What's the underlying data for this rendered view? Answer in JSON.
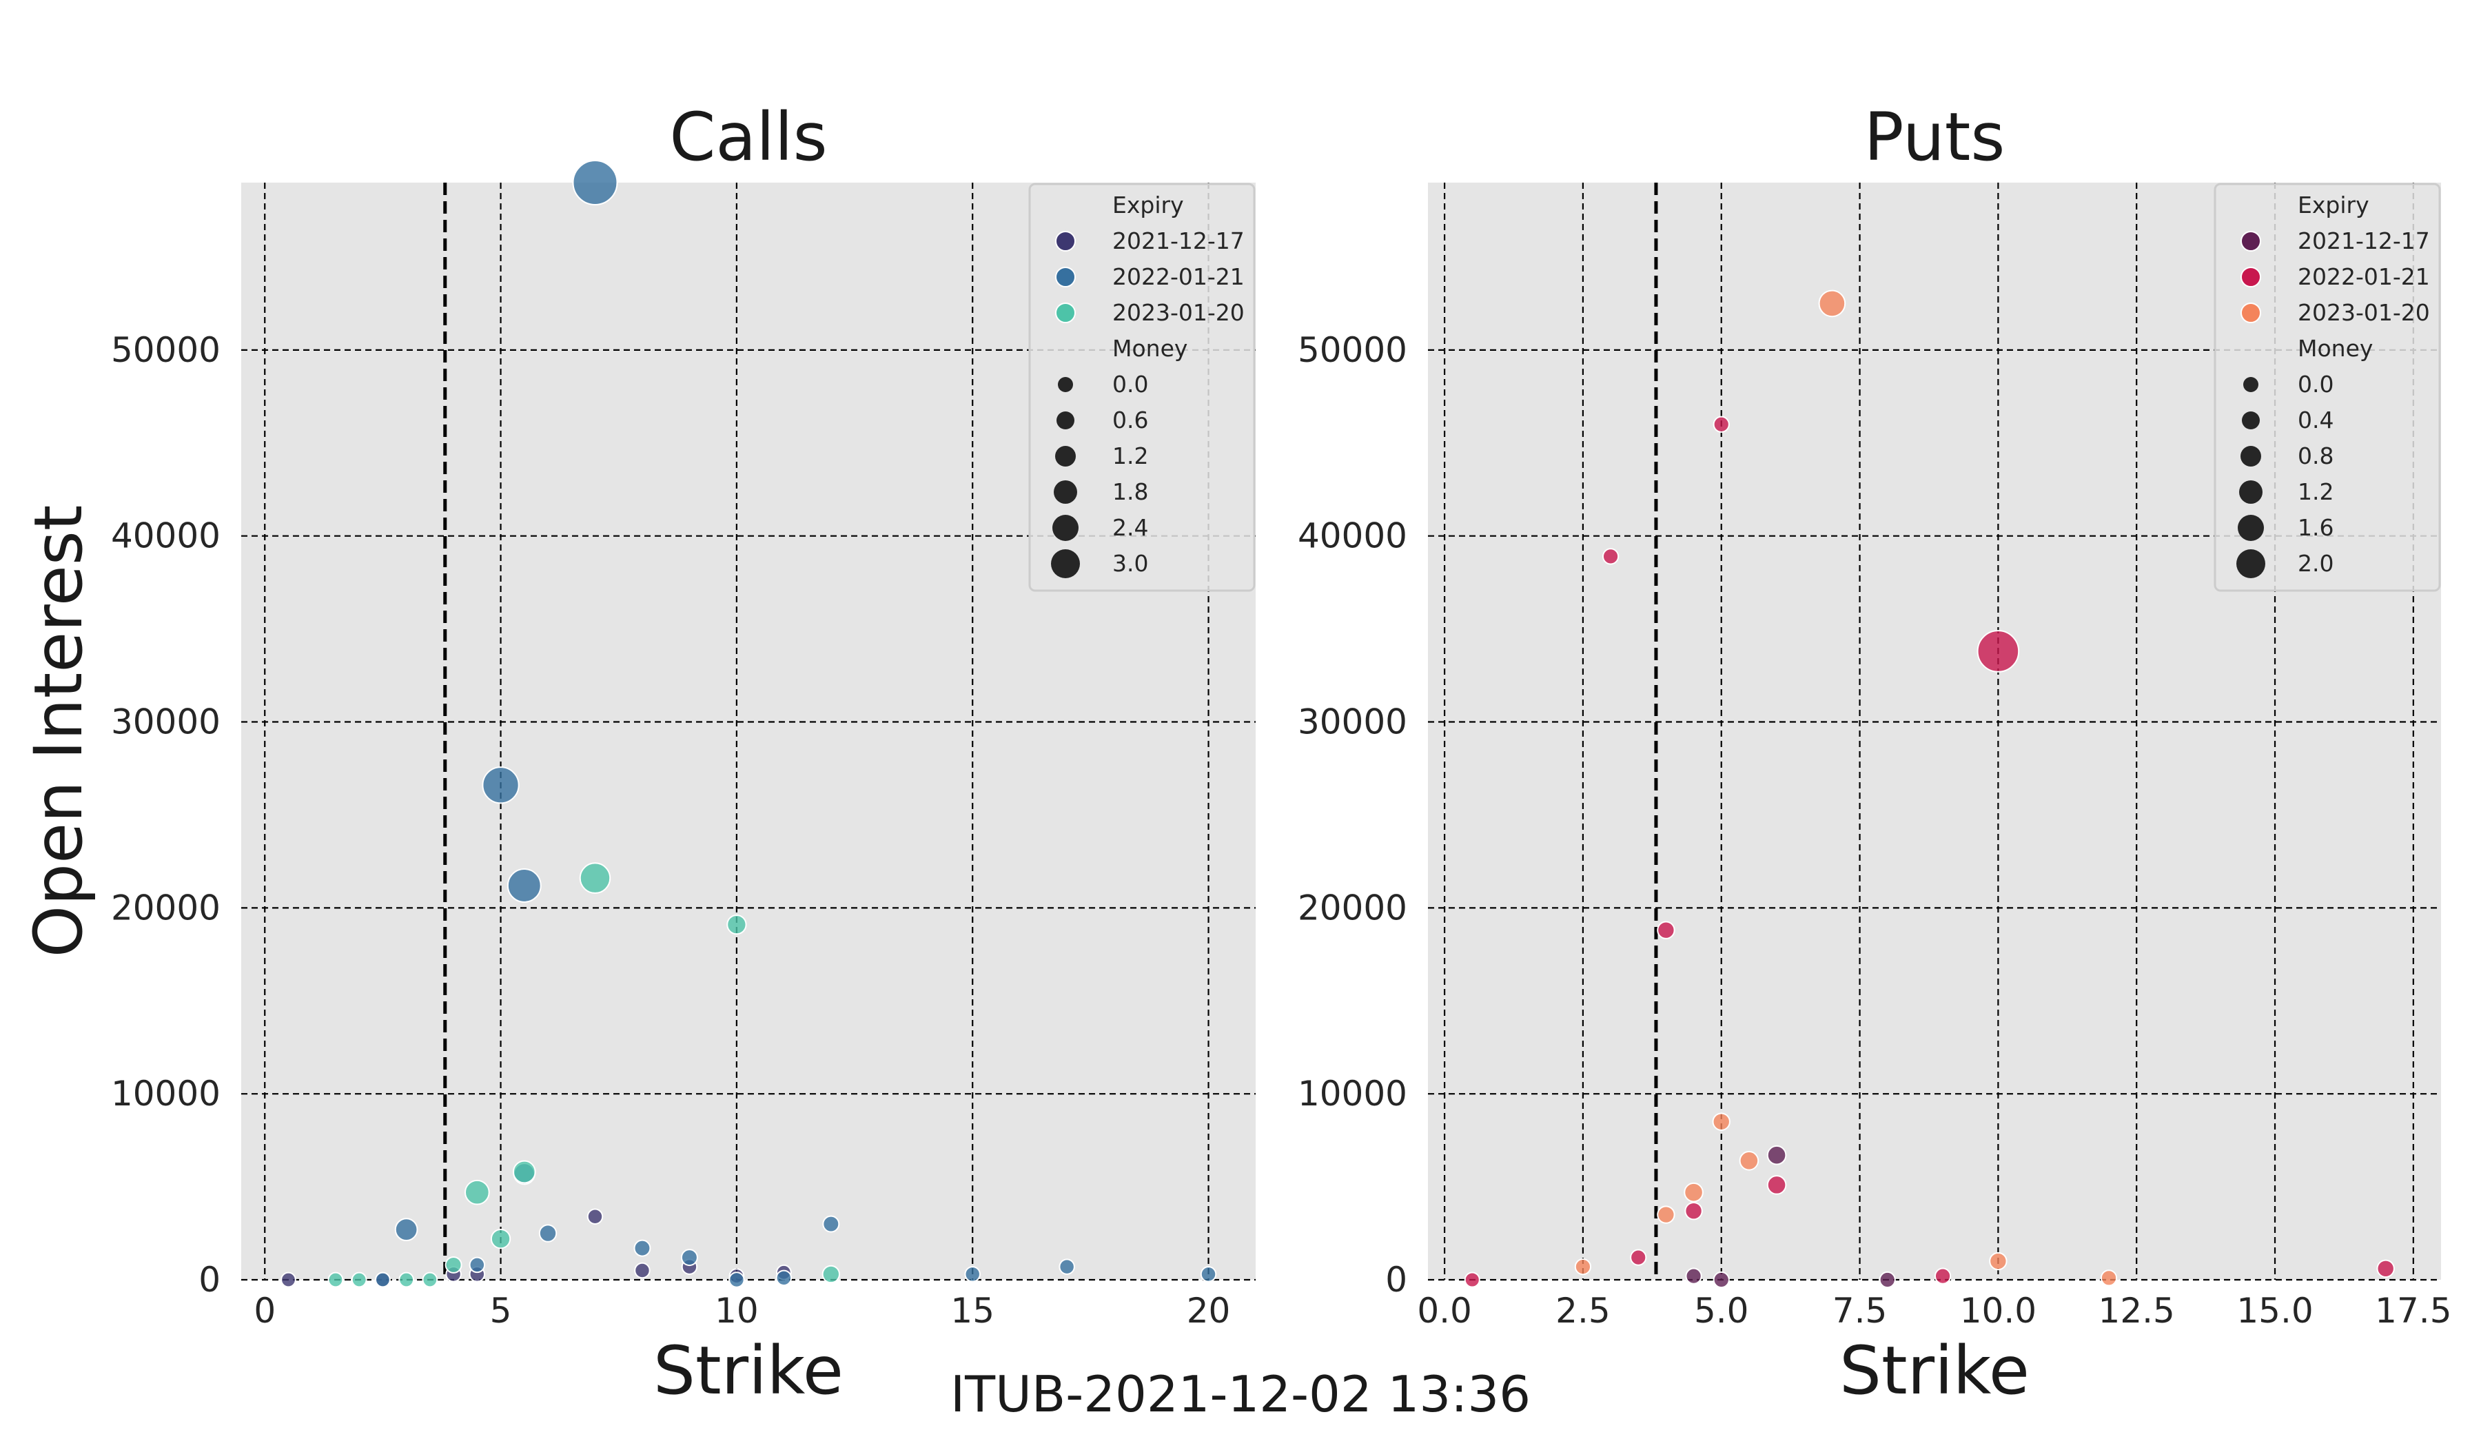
{
  "caption": "ITUB-2021-12-02 13:36",
  "chart_data": [
    {
      "type": "scatter",
      "title": "Calls",
      "xlabel": "Strike",
      "ylabel": "Open Interest",
      "xlim": [
        -0.5,
        21
      ],
      "ylim": [
        0,
        59000
      ],
      "xticks": [
        0,
        5,
        10,
        15,
        20
      ],
      "xtick_labels": [
        "0",
        "5",
        "10",
        "15",
        "20"
      ],
      "yticks": [
        0,
        10000,
        20000,
        30000,
        40000,
        50000
      ],
      "ytick_labels": [
        "0",
        "10000",
        "20000",
        "30000",
        "40000",
        "50000"
      ],
      "grid": true,
      "spot_line_x": 3.82,
      "legend": {
        "position": "top-right",
        "hue_title": "Expiry",
        "size_title": "Money",
        "size_entries": [
          "0.0",
          "0.6",
          "1.2",
          "1.8",
          "2.4",
          "3.0"
        ],
        "size_values": [
          0.0,
          0.6,
          1.2,
          1.8,
          2.4,
          3.0
        ]
      },
      "size_range": [
        0,
        3.0
      ],
      "series": [
        {
          "name": "2021-12-17",
          "color": "#3d3770",
          "points": [
            {
              "x": 0.5,
              "y": 0,
              "m": 0.05
            },
            {
              "x": 2.5,
              "y": 0,
              "m": 0.05
            },
            {
              "x": 4,
              "y": 300,
              "m": 0.1
            },
            {
              "x": 4.5,
              "y": 300,
              "m": 0.1
            },
            {
              "x": 7,
              "y": 3400,
              "m": 0.1
            },
            {
              "x": 8,
              "y": 500,
              "m": 0.1
            },
            {
              "x": 9,
              "y": 700,
              "m": 0.1
            },
            {
              "x": 10,
              "y": 200,
              "m": 0.05
            },
            {
              "x": 11,
              "y": 400,
              "m": 0.05
            }
          ]
        },
        {
          "name": "2022-01-21",
          "color": "#36709f",
          "points": [
            {
              "x": 2.5,
              "y": 0,
              "m": 0.05
            },
            {
              "x": 3,
              "y": 2700,
              "m": 0.8
            },
            {
              "x": 4.5,
              "y": 800,
              "m": 0.1
            },
            {
              "x": 5,
              "y": 26600,
              "m": 2.2
            },
            {
              "x": 5.5,
              "y": 21200,
              "m": 1.9
            },
            {
              "x": 5.5,
              "y": 5700,
              "m": 0.7
            },
            {
              "x": 6,
              "y": 2500,
              "m": 0.3
            },
            {
              "x": 7,
              "y": 59000,
              "m": 3.0
            },
            {
              "x": 8,
              "y": 1700,
              "m": 0.2
            },
            {
              "x": 9,
              "y": 1200,
              "m": 0.2
            },
            {
              "x": 10,
              "y": 0,
              "m": 0.1
            },
            {
              "x": 11,
              "y": 100,
              "m": 0.1
            },
            {
              "x": 12,
              "y": 3000,
              "m": 0.2
            },
            {
              "x": 15,
              "y": 300,
              "m": 0.1
            },
            {
              "x": 17,
              "y": 700,
              "m": 0.1
            },
            {
              "x": 20,
              "y": 300,
              "m": 0.1
            }
          ]
        },
        {
          "name": "2023-01-20",
          "color": "#4dc3a8",
          "points": [
            {
              "x": 1.5,
              "y": 0,
              "m": 0.05
            },
            {
              "x": 2,
              "y": 0,
              "m": 0.05
            },
            {
              "x": 3,
              "y": 0,
              "m": 0.05
            },
            {
              "x": 3.5,
              "y": 0,
              "m": 0.05
            },
            {
              "x": 4,
              "y": 800,
              "m": 0.2
            },
            {
              "x": 4.5,
              "y": 4700,
              "m": 1.0
            },
            {
              "x": 5,
              "y": 2200,
              "m": 0.5
            },
            {
              "x": 5.5,
              "y": 5800,
              "m": 0.8
            },
            {
              "x": 7,
              "y": 21600,
              "m": 1.6
            },
            {
              "x": 10,
              "y": 19100,
              "m": 0.5
            },
            {
              "x": 12,
              "y": 300,
              "m": 0.3
            }
          ]
        }
      ]
    },
    {
      "type": "scatter",
      "title": "Puts",
      "xlabel": "Strike",
      "ylabel": "",
      "xlim": [
        -0.3,
        18
      ],
      "ylim": [
        0,
        59000
      ],
      "xticks": [
        0,
        2.5,
        5,
        7.5,
        10,
        12.5,
        15,
        17.5
      ],
      "xtick_labels": [
        "0.0",
        "2.5",
        "5.0",
        "7.5",
        "10.0",
        "12.5",
        "15.0",
        "17.5"
      ],
      "yticks": [
        0,
        10000,
        20000,
        30000,
        40000,
        50000
      ],
      "ytick_labels": [
        "0",
        "10000",
        "20000",
        "30000",
        "40000",
        "50000"
      ],
      "grid": true,
      "spot_line_x": 3.82,
      "legend": {
        "position": "top-right",
        "hue_title": "Expiry",
        "size_title": "Money",
        "size_entries": [
          "0.0",
          "0.4",
          "0.8",
          "1.2",
          "1.6",
          "2.0"
        ],
        "size_values": [
          0.0,
          0.4,
          0.8,
          1.2,
          1.6,
          2.0
        ]
      },
      "size_range": [
        0,
        2.0
      ],
      "series": [
        {
          "name": "2021-12-17",
          "color": "#5e1f52",
          "points": [
            {
              "x": 4.5,
              "y": 200,
              "m": 0.1
            },
            {
              "x": 5,
              "y": 0,
              "m": 0.1
            },
            {
              "x": 6,
              "y": 6700,
              "m": 0.3
            },
            {
              "x": 8,
              "y": 0,
              "m": 0.1
            }
          ]
        },
        {
          "name": "2022-01-21",
          "color": "#c8174e",
          "points": [
            {
              "x": 0.5,
              "y": 0,
              "m": 0.05
            },
            {
              "x": 3,
              "y": 38900,
              "m": 0.1
            },
            {
              "x": 3.5,
              "y": 1200,
              "m": 0.1
            },
            {
              "x": 4,
              "y": 18800,
              "m": 0.2
            },
            {
              "x": 4.5,
              "y": 3700,
              "m": 0.2
            },
            {
              "x": 5,
              "y": 46000,
              "m": 0.1
            },
            {
              "x": 6,
              "y": 5100,
              "m": 0.3
            },
            {
              "x": 9,
              "y": 200,
              "m": 0.1
            },
            {
              "x": 10,
              "y": 33800,
              "m": 1.8
            },
            {
              "x": 17,
              "y": 600,
              "m": 0.2
            }
          ]
        },
        {
          "name": "2023-01-20",
          "color": "#f4845b",
          "points": [
            {
              "x": 2.5,
              "y": 700,
              "m": 0.1
            },
            {
              "x": 4,
              "y": 3500,
              "m": 0.2
            },
            {
              "x": 4.5,
              "y": 4700,
              "m": 0.3
            },
            {
              "x": 5,
              "y": 8500,
              "m": 0.2
            },
            {
              "x": 5.5,
              "y": 6400,
              "m": 0.3
            },
            {
              "x": 7,
              "y": 52500,
              "m": 0.8
            },
            {
              "x": 10,
              "y": 1000,
              "m": 0.2
            },
            {
              "x": 12,
              "y": 100,
              "m": 0.1
            }
          ]
        }
      ]
    }
  ]
}
